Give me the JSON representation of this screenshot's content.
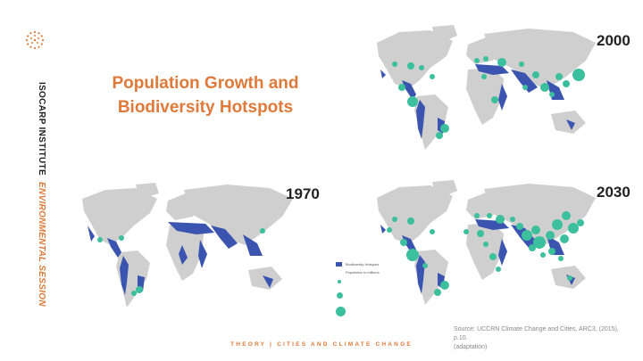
{
  "brand": {
    "institute": "ISOCARP INSTITUTE",
    "session": "ENVIRONMENTAL SESSION"
  },
  "title": {
    "line1": "Population Growth and",
    "line2": "Biodiversity Hotspots"
  },
  "maps": {
    "m1970": {
      "year": "1970"
    },
    "m2000": {
      "year": "2000"
    },
    "m2030": {
      "year": "2030"
    }
  },
  "legend": {
    "hotspots": "Biodiversity Hotspots",
    "population": "Population in millions"
  },
  "source": {
    "line1": "Source: UCCRN Climate Change and Cities, ARC3, (2015), p.10.",
    "line2": "(adaptation)"
  },
  "footer": "THEORY | CITIES AND CLIMATE CHANGE",
  "colors": {
    "accent": "#e07a3a",
    "land": "#cfcfcf",
    "hotspot": "#3a54b0",
    "population": "#3cbf9d"
  }
}
